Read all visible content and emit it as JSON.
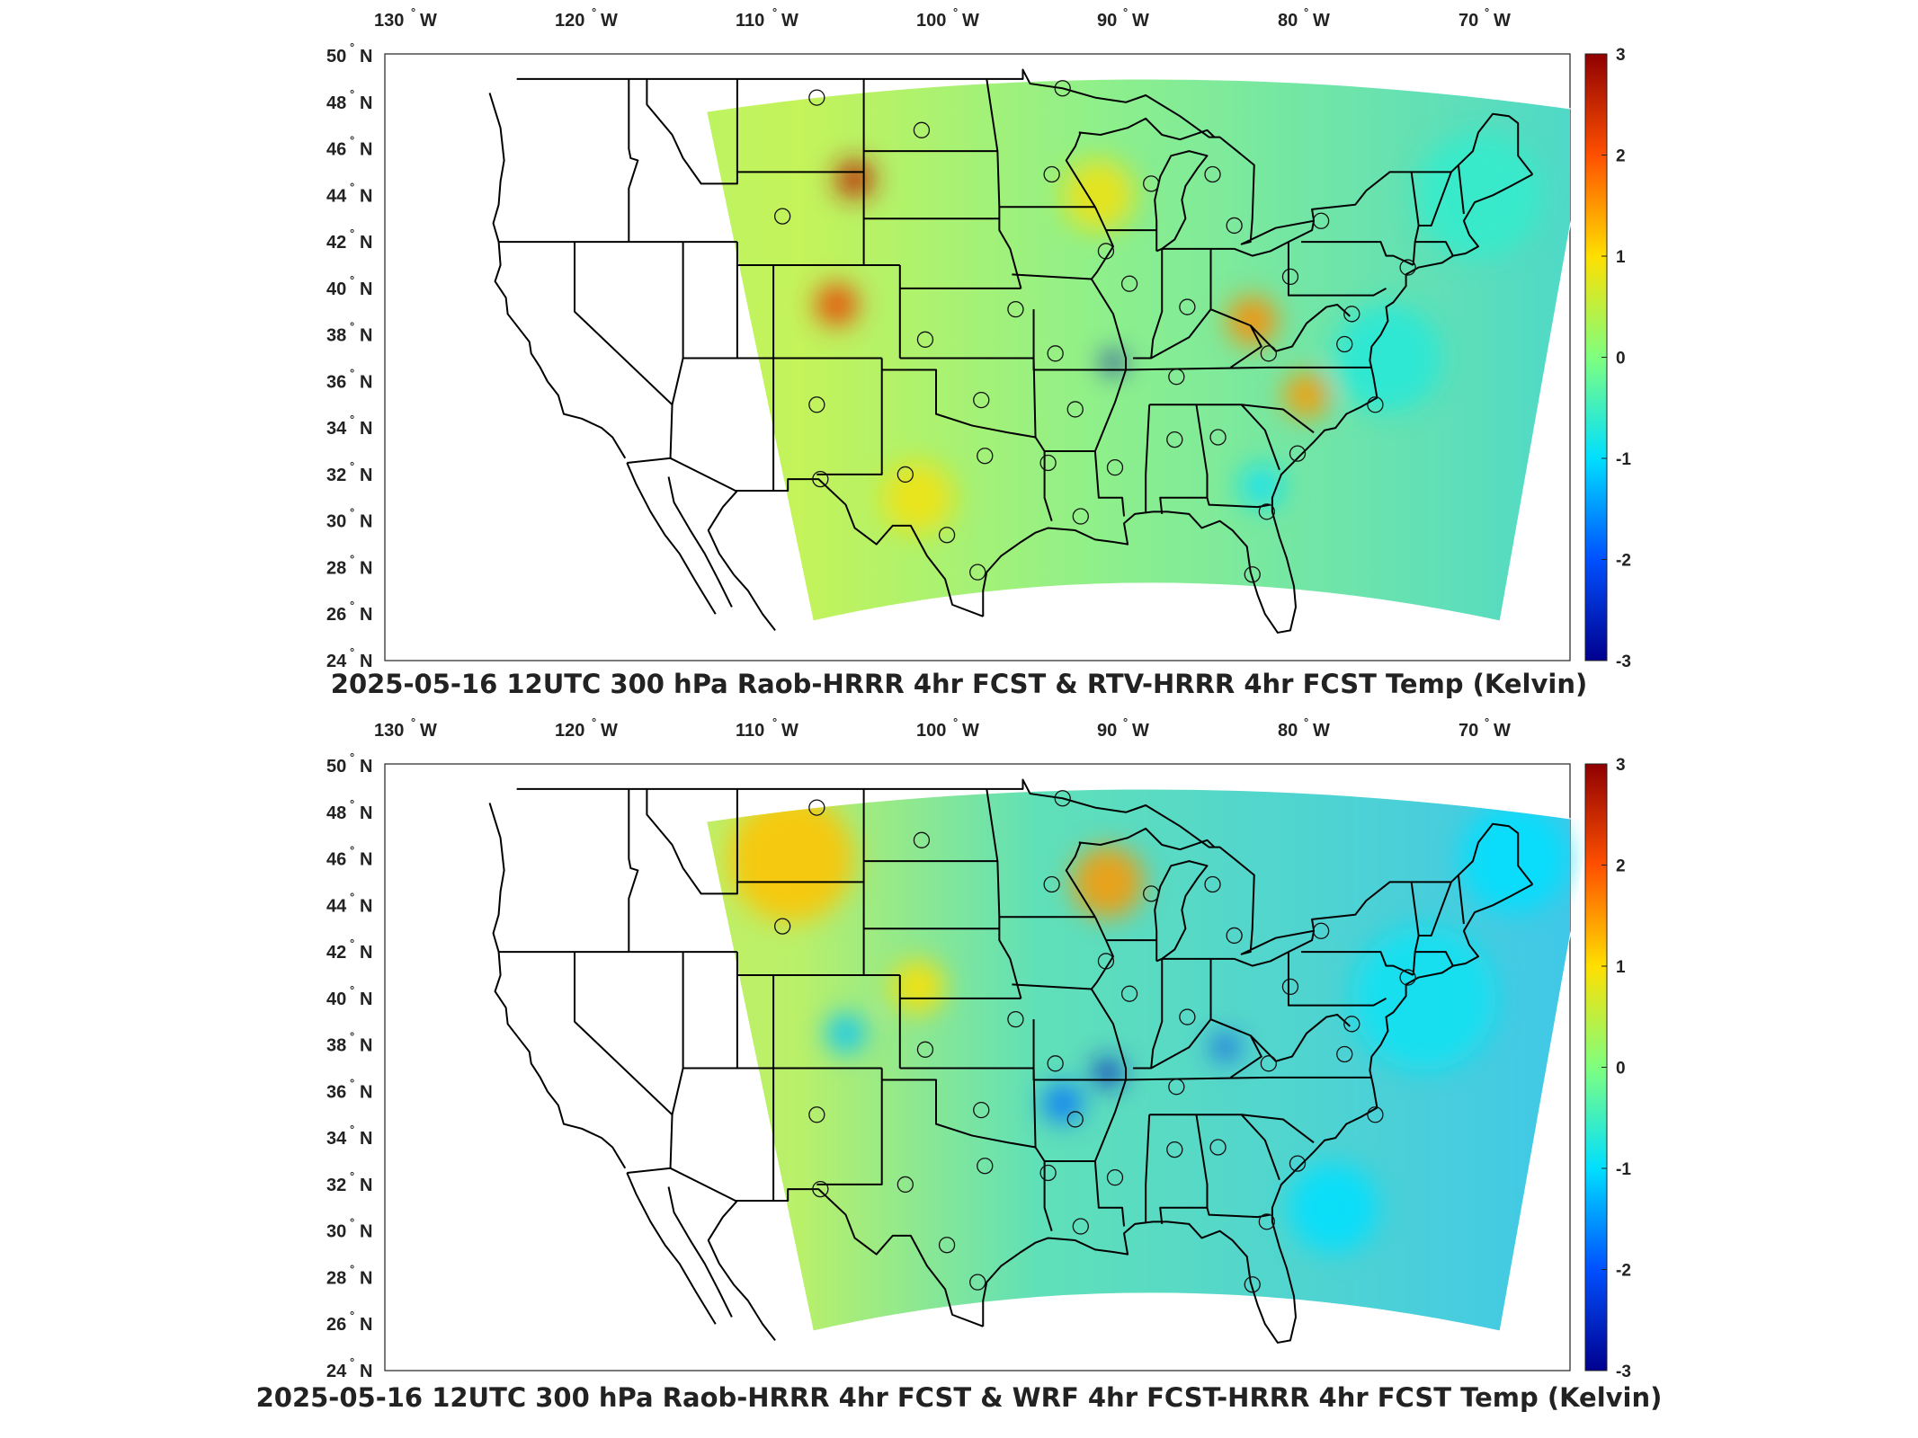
{
  "panels": [
    {
      "title": "2025-05-16 12UTC 300 hPa Raob-HRRR 4hr FCST & RTV-HRRR 4hr FCST Temp (Kelvin)",
      "field_tint": "warm"
    },
    {
      "title": "2025-05-16 12UTC 300 hPa Raob-HRRR 4hr FCST & WRF 4hr FCST-HRRR 4hr FCST Temp (Kelvin)",
      "field_tint": "cool"
    }
  ],
  "map": {
    "lon_labels": [
      {
        "lon": -130,
        "text": "130",
        "hemi": "W"
      },
      {
        "lon": -120,
        "text": "120",
        "hemi": "W"
      },
      {
        "lon": -110,
        "text": "110",
        "hemi": "W"
      },
      {
        "lon": -100,
        "text": "100",
        "hemi": "W"
      },
      {
        "lon": -90,
        "text": "90",
        "hemi": "W"
      },
      {
        "lon": -80,
        "text": "80",
        "hemi": "W"
      },
      {
        "lon": -70,
        "text": "70",
        "hemi": "W"
      }
    ],
    "lat_labels": [
      {
        "lat": 50,
        "text": "50",
        "hemi": "N"
      },
      {
        "lat": 48,
        "text": "48",
        "hemi": "N"
      },
      {
        "lat": 46,
        "text": "46",
        "hemi": "N"
      },
      {
        "lat": 44,
        "text": "44",
        "hemi": "N"
      },
      {
        "lat": 42,
        "text": "42",
        "hemi": "N"
      },
      {
        "lat": 40,
        "text": "40",
        "hemi": "N"
      },
      {
        "lat": 38,
        "text": "38",
        "hemi": "N"
      },
      {
        "lat": 36,
        "text": "36",
        "hemi": "N"
      },
      {
        "lat": 34,
        "text": "34",
        "hemi": "N"
      },
      {
        "lat": 32,
        "text": "32",
        "hemi": "N"
      },
      {
        "lat": 30,
        "text": "30",
        "hemi": "N"
      },
      {
        "lat": 28,
        "text": "28",
        "hemi": "N"
      },
      {
        "lat": 26,
        "text": "26",
        "hemi": "N"
      },
      {
        "lat": 24,
        "text": "24",
        "hemi": "N"
      }
    ],
    "stations": [
      {
        "lon": -106.6,
        "lat": 48.2
      },
      {
        "lon": -100.8,
        "lat": 46.8
      },
      {
        "lon": -93.6,
        "lat": 44.9
      },
      {
        "lon": -93.0,
        "lat": 48.6
      },
      {
        "lon": -88.1,
        "lat": 44.5
      },
      {
        "lon": -84.7,
        "lat": 44.9
      },
      {
        "lon": -83.5,
        "lat": 42.7
      },
      {
        "lon": -78.7,
        "lat": 42.9
      },
      {
        "lon": -108.5,
        "lat": 43.1
      },
      {
        "lon": -90.6,
        "lat": 41.6
      },
      {
        "lon": -89.3,
        "lat": 40.2
      },
      {
        "lon": -86.1,
        "lat": 39.2
      },
      {
        "lon": -95.6,
        "lat": 39.1
      },
      {
        "lon": -100.6,
        "lat": 37.8
      },
      {
        "lon": -93.4,
        "lat": 37.2
      },
      {
        "lon": -81.6,
        "lat": 37.2
      },
      {
        "lon": -80.4,
        "lat": 40.5
      },
      {
        "lon": -77.0,
        "lat": 38.9
      },
      {
        "lon": -86.7,
        "lat": 36.2
      },
      {
        "lon": -97.5,
        "lat": 35.2
      },
      {
        "lon": -92.3,
        "lat": 34.8
      },
      {
        "lon": -106.6,
        "lat": 35.0
      },
      {
        "lon": -84.4,
        "lat": 33.6
      },
      {
        "lon": -86.8,
        "lat": 33.5
      },
      {
        "lon": -90.1,
        "lat": 32.3
      },
      {
        "lon": -93.8,
        "lat": 32.5
      },
      {
        "lon": -97.3,
        "lat": 32.8
      },
      {
        "lon": -101.7,
        "lat": 32.0
      },
      {
        "lon": -106.4,
        "lat": 31.8
      },
      {
        "lon": -92.0,
        "lat": 30.2
      },
      {
        "lon": -97.7,
        "lat": 27.8
      },
      {
        "lon": -99.4,
        "lat": 29.4
      },
      {
        "lon": -81.7,
        "lat": 30.4
      },
      {
        "lon": -82.5,
        "lat": 27.7
      },
      {
        "lon": -80.0,
        "lat": 32.9
      },
      {
        "lon": -75.7,
        "lat": 35.0
      },
      {
        "lon": -77.4,
        "lat": 37.6
      },
      {
        "lon": -73.9,
        "lat": 40.9
      }
    ]
  },
  "colorbar": {
    "min": -3,
    "max": 3,
    "ticks": [
      {
        "value": 3,
        "text": "3"
      },
      {
        "value": 2,
        "text": "2"
      },
      {
        "value": 1,
        "text": "1"
      },
      {
        "value": 0,
        "text": "0"
      },
      {
        "value": -1,
        "text": "-1"
      },
      {
        "value": -2,
        "text": "-2"
      },
      {
        "value": -3,
        "text": "-3"
      }
    ],
    "colors": [
      "#00008f",
      "#0050ff",
      "#00dfff",
      "#7fff7f",
      "#ffdf00",
      "#ff5000",
      "#8f0000"
    ]
  }
}
